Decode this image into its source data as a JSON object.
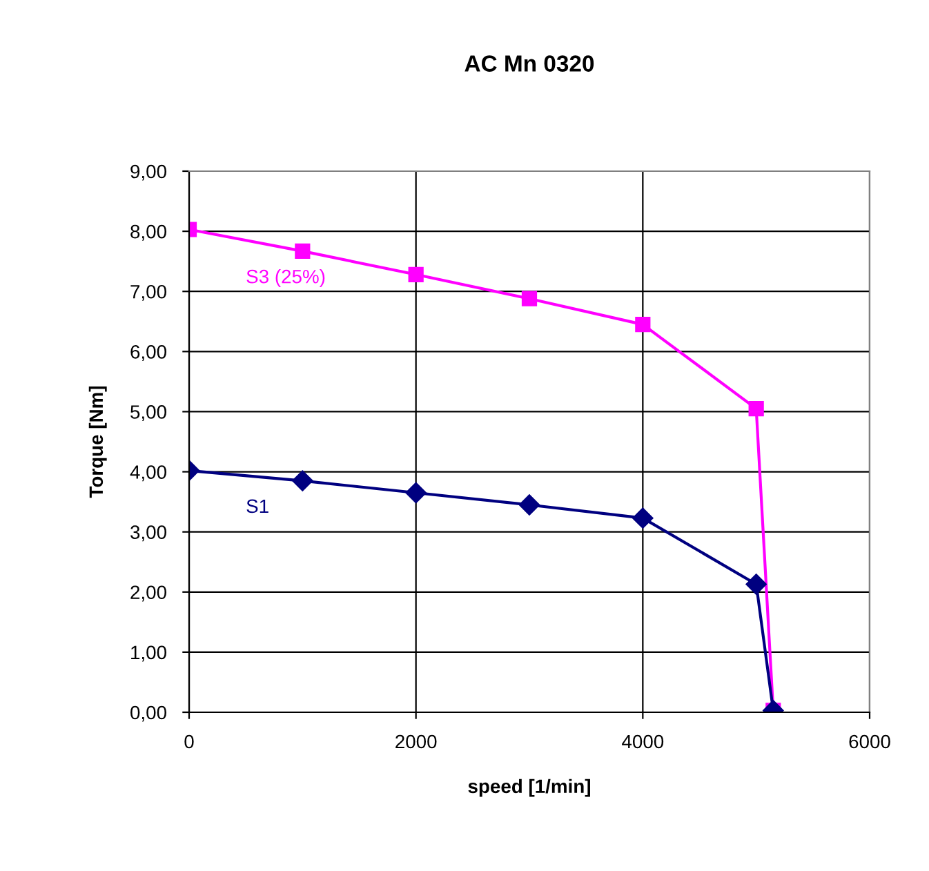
{
  "chart_data": {
    "type": "line",
    "title": "AC Mn 0320",
    "xlabel": "speed [1/min]",
    "ylabel": "Torque [Nm]",
    "x": [
      0,
      1000,
      2000,
      3000,
      4000,
      5000,
      5150
    ],
    "series": [
      {
        "name": "S3 (25%)",
        "color": "#ff00ff",
        "marker": "square",
        "values": [
          8.03,
          7.67,
          7.28,
          6.88,
          6.45,
          5.05,
          0.03
        ]
      },
      {
        "name": "S1",
        "color": "#000080",
        "marker": "diamond",
        "values": [
          4.02,
          3.85,
          3.65,
          3.45,
          3.23,
          2.13,
          0.03
        ]
      }
    ],
    "xlim": [
      0,
      6000
    ],
    "xticks": [
      0,
      2000,
      4000,
      6000
    ],
    "ylim": [
      0,
      9
    ],
    "yticks": [
      {
        "value": 0,
        "label": "0,00"
      },
      {
        "value": 1,
        "label": "1,00"
      },
      {
        "value": 2,
        "label": "2,00"
      },
      {
        "value": 3,
        "label": "3,00"
      },
      {
        "value": 4,
        "label": "4,00"
      },
      {
        "value": 5,
        "label": "5,00"
      },
      {
        "value": 6,
        "label": "6,00"
      },
      {
        "value": 7,
        "label": "7,00"
      },
      {
        "value": 8,
        "label": "8,00"
      },
      {
        "value": 9,
        "label": "9,00"
      }
    ],
    "grid": true,
    "legend": false
  }
}
